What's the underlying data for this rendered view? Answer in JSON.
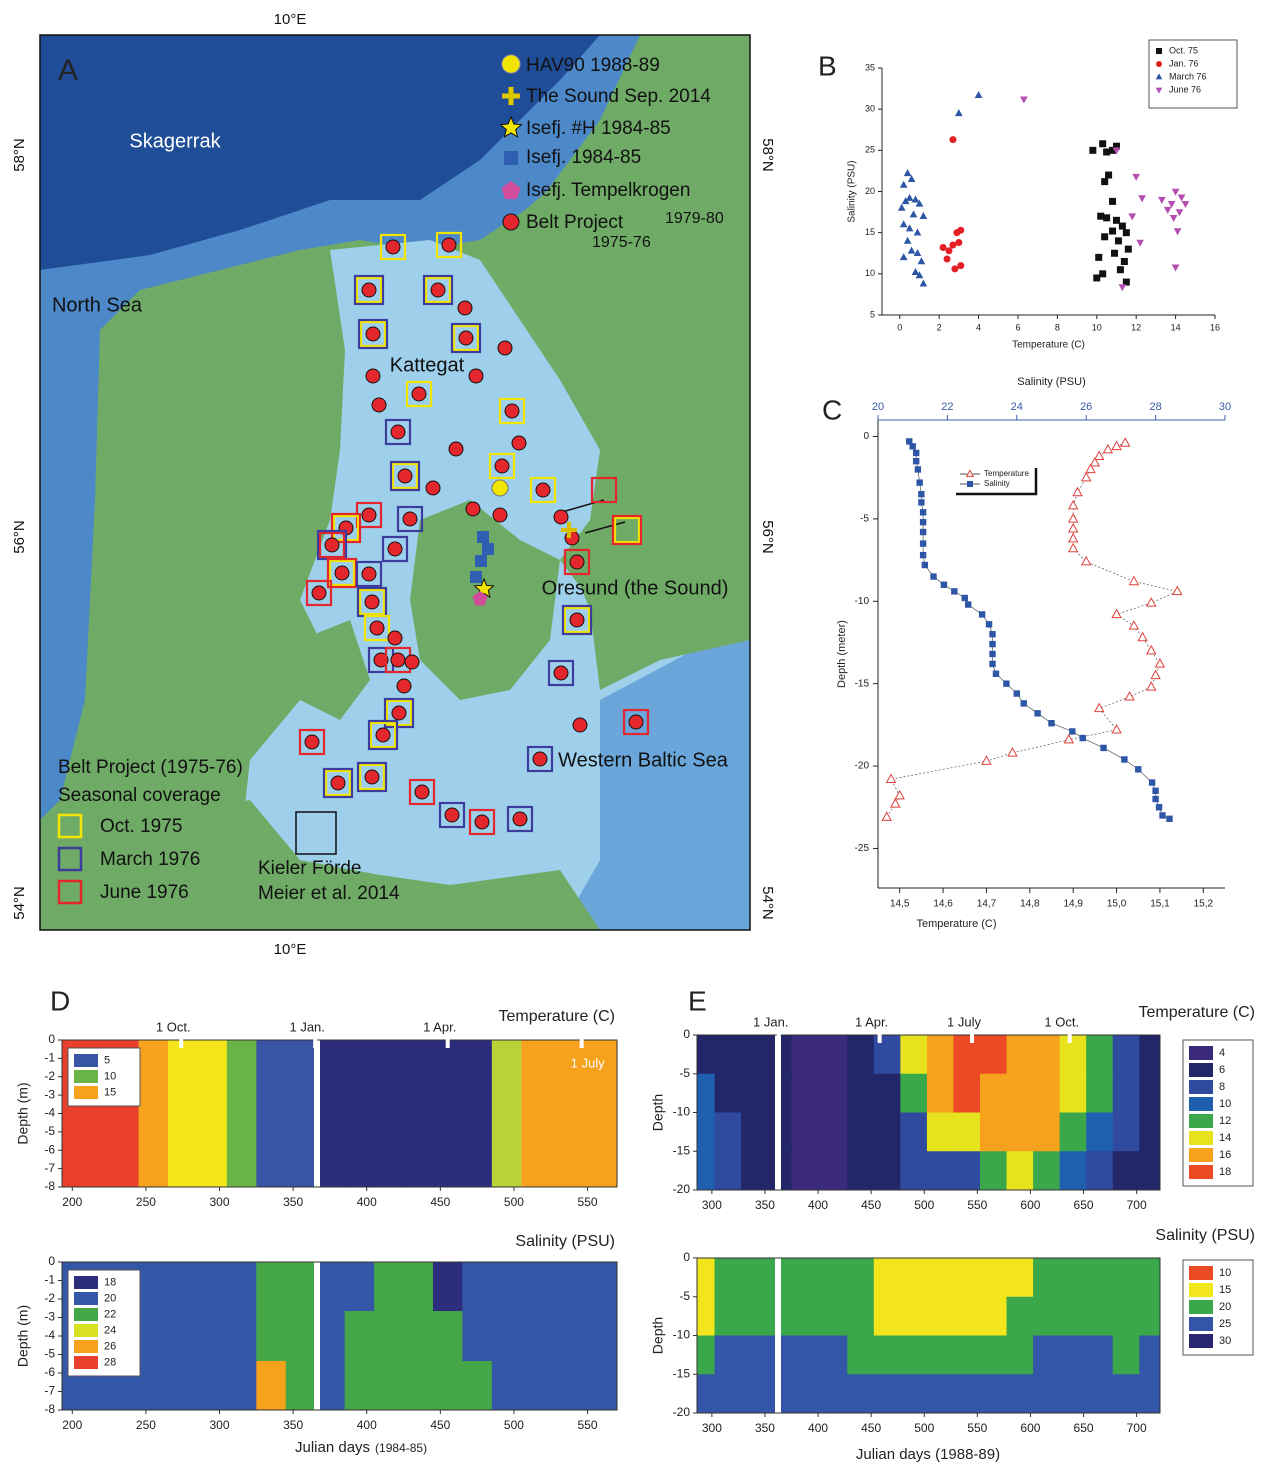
{
  "map": {
    "panel": "A",
    "lon_label": "10°E",
    "lat_labels": [
      "58°N",
      "56°N",
      "54°N"
    ],
    "places": [
      "Skagerrak",
      "North Sea",
      "Kattegat",
      "Oresund (the Sound)",
      "Western Baltic Sea"
    ],
    "legend": [
      "HAV90 1988-89",
      "The Sound Sep. 2014",
      "Isefj. #H 1984-85",
      "Isefj. 1984-85",
      "Isefj. Tempelkrogen",
      "Belt Project"
    ],
    "legend_notes": [
      "1979-80",
      "1975-76"
    ],
    "coverage_title": [
      "Belt Project (1975-76)",
      "Seasonal coverage"
    ],
    "coverage": [
      {
        "label": "Oct. 1975",
        "color": "#f2e600"
      },
      {
        "label": "March 1976",
        "color": "#3d3d9e"
      },
      {
        "label": "June 1976",
        "color": "#e4262d"
      }
    ],
    "inset": [
      "Kieler Förde",
      "Meier et al. 2014"
    ]
  },
  "chart_data": [
    {
      "type": "scatter",
      "panel": "B",
      "x_label": "Temperature (C)",
      "y_label": "Salinity (PSU)",
      "xlim": [
        -0.9,
        16
      ],
      "xticks": [
        0,
        2,
        4,
        6,
        8,
        10,
        12,
        14,
        16
      ],
      "ylim": [
        5,
        35
      ],
      "yticks": [
        5,
        10,
        15,
        20,
        25,
        30,
        35
      ],
      "legend": "upper right",
      "series": [
        {
          "name": "Oct. 75",
          "color": "#111111",
          "marker": "square",
          "x": [
            9.8,
            10.3,
            10.5,
            11.0,
            10.8,
            10.6,
            10.4,
            10.8,
            10.2,
            10.5,
            11.0,
            11.3,
            10.8,
            11.5,
            10.4,
            11.1,
            11.6,
            10.9,
            10.1,
            11.4,
            10.3,
            10.0,
            11.5,
            11.2
          ],
          "y": [
            25.0,
            25.8,
            24.8,
            25.5,
            25.0,
            22.0,
            21.2,
            18.8,
            17.0,
            16.8,
            16.5,
            15.8,
            15.2,
            15.0,
            14.5,
            14.0,
            13.0,
            12.5,
            12.0,
            11.5,
            10.0,
            9.5,
            9.0,
            10.5
          ]
        },
        {
          "name": "Jan. 76",
          "color": "#e31e24",
          "marker": "circle",
          "x": [
            2.7,
            2.2,
            2.5,
            2.4,
            3.0,
            2.9,
            3.1,
            2.7,
            2.8,
            3.1
          ],
          "y": [
            26.3,
            13.2,
            12.8,
            11.8,
            13.8,
            15.0,
            15.3,
            13.5,
            10.6,
            11.0
          ]
        },
        {
          "name": "March 76",
          "color": "#2e56a6",
          "marker": "triangle",
          "x": [
            0.2,
            0.4,
            0.6,
            0.1,
            0.3,
            0.5,
            0.8,
            1.0,
            0.7,
            1.2,
            0.2,
            0.5,
            0.9,
            0.4,
            0.6,
            0.2,
            0.9,
            1.1,
            0.8,
            1.0,
            1.2,
            3.0,
            4.0
          ],
          "y": [
            20.8,
            22.2,
            21.5,
            18.0,
            18.8,
            19.2,
            19.0,
            18.5,
            17.2,
            17.0,
            16.0,
            15.5,
            15.0,
            14.0,
            12.8,
            12.0,
            12.5,
            11.5,
            10.2,
            9.8,
            8.8,
            29.5,
            31.7
          ]
        },
        {
          "name": "June 76",
          "color": "#b44fb0",
          "marker": "triangle-down",
          "x": [
            6.3,
            11.0,
            12.0,
            12.3,
            11.8,
            12.2,
            11.3,
            13.3,
            13.8,
            14.0,
            14.3,
            13.6,
            14.2,
            14.5,
            13.9,
            14.1,
            14.0
          ],
          "y": [
            31.2,
            25.0,
            21.8,
            19.2,
            17.0,
            13.8,
            8.4,
            19.0,
            18.5,
            20.0,
            19.3,
            17.8,
            17.5,
            18.5,
            16.8,
            15.2,
            10.8
          ]
        }
      ]
    },
    {
      "type": "line",
      "panel": "C",
      "x_label": "Temperature (C)",
      "x2_label": "Salinity (PSU)",
      "y_label": "Depth (meter)",
      "xlim": [
        14.45,
        15.25
      ],
      "xticks": [
        {
          "value": 14.5,
          "label": "14,5"
        },
        {
          "value": 14.6,
          "label": "14,6"
        },
        {
          "value": 14.7,
          "label": "14,7"
        },
        {
          "value": 14.8,
          "label": "14,8"
        },
        {
          "value": 14.9,
          "label": "14,9"
        },
        {
          "value": 15.0,
          "label": "15,0"
        },
        {
          "value": 15.1,
          "label": "15,1"
        },
        {
          "value": 15.2,
          "label": "15,2"
        }
      ],
      "x2lim": [
        20,
        30
      ],
      "x2ticks": [
        20,
        22,
        24,
        26,
        28,
        30
      ],
      "x2_color": "#3a5aa6",
      "ylim": [
        -27.4,
        1
      ],
      "yticks": [
        0,
        -5,
        -10,
        -15,
        -20,
        -25
      ],
      "legend": "upper left",
      "series": [
        {
          "name": "Temperature",
          "color": "#e0403a",
          "marker": "triangle-open",
          "axis": "x",
          "x": [
            15.02,
            15.0,
            14.98,
            14.96,
            14.95,
            14.94,
            14.93,
            14.91,
            14.9,
            14.9,
            14.9,
            14.9,
            14.9,
            14.93,
            15.04,
            15.14,
            15.08,
            15.0,
            15.04,
            15.06,
            15.08,
            15.1,
            15.09,
            15.08,
            15.03,
            14.96,
            15.0,
            14.89,
            14.76,
            14.7,
            14.48,
            14.5,
            14.49,
            14.47
          ],
          "y": [
            -0.4,
            -0.6,
            -0.8,
            -1.2,
            -1.6,
            -2.0,
            -2.5,
            -3.4,
            -4.2,
            -5.0,
            -5.6,
            -6.2,
            -6.8,
            -7.6,
            -8.8,
            -9.4,
            -10.1,
            -10.8,
            -11.5,
            -12.2,
            -13.0,
            -13.8,
            -14.5,
            -15.2,
            -15.8,
            -16.5,
            -17.8,
            -18.4,
            -19.2,
            -19.7,
            -20.8,
            -21.8,
            -22.3,
            -23.1
          ]
        },
        {
          "name": "Salinity",
          "color": "#2e56a6",
          "marker": "square",
          "axis": "x2",
          "x": [
            20.9,
            21.0,
            21.1,
            21.1,
            21.15,
            21.2,
            21.25,
            21.25,
            21.3,
            21.3,
            21.3,
            21.3,
            21.3,
            21.35,
            21.6,
            21.9,
            22.2,
            22.5,
            22.6,
            23.0,
            23.2,
            23.3,
            23.3,
            23.3,
            23.3,
            23.4,
            23.7,
            24.0,
            24.2,
            24.6,
            25.0,
            25.6,
            25.9,
            26.5,
            27.1,
            27.5,
            27.9,
            28.0,
            28.0,
            28.1,
            28.2,
            28.4
          ],
          "y": [
            -0.3,
            -0.6,
            -1.0,
            -1.5,
            -2.0,
            -2.8,
            -3.5,
            -4.0,
            -4.6,
            -5.2,
            -5.8,
            -6.5,
            -7.2,
            -7.8,
            -8.5,
            -9.0,
            -9.4,
            -9.8,
            -10.2,
            -10.8,
            -11.4,
            -12.0,
            -12.6,
            -13.2,
            -13.8,
            -14.4,
            -15.0,
            -15.6,
            -16.2,
            -16.8,
            -17.4,
            -17.9,
            -18.3,
            -18.9,
            -19.6,
            -20.2,
            -21.0,
            -21.5,
            -22.0,
            -22.5,
            -23.0,
            -23.2
          ]
        }
      ]
    },
    {
      "type": "heatmap",
      "panel": "D",
      "title": "Temperature (C)",
      "y_label": "Depth (m)",
      "xlim": [
        193,
        570
      ],
      "xticks": [
        200,
        250,
        300,
        350,
        400,
        450,
        500,
        550
      ],
      "ylim": [
        -8,
        0
      ],
      "yticks": [
        0,
        -1,
        -2,
        -3,
        -4,
        -5,
        -6,
        -7,
        -8
      ],
      "date_marks": [
        {
          "value": 274,
          "label": "1 Oct."
        },
        {
          "value": 365,
          "label": "1 Jan."
        },
        {
          "value": 455,
          "label": "1 Apr."
        },
        {
          "value": 546,
          "label": "1 July"
        }
      ],
      "colorbar": [
        {
          "value": 5,
          "color": "#3a55a5"
        },
        {
          "value": 10,
          "color": "#6ab446"
        },
        {
          "value": 15,
          "color": "#f7a21d"
        }
      ],
      "colormap": [
        {
          "value": 0,
          "color": "#2c2d7c"
        },
        {
          "value": 5,
          "color": "#3a55a5"
        },
        {
          "value": 9,
          "color": "#6ab446"
        },
        {
          "value": 12,
          "color": "#b7d337"
        },
        {
          "value": 13,
          "color": "#f5e61c"
        },
        {
          "value": 16,
          "color": "#f7a21d"
        },
        {
          "value": 17.5,
          "color": "#e8402a"
        }
      ],
      "x": [
        195,
        215,
        235,
        255,
        275,
        295,
        315,
        335,
        355,
        375,
        395,
        415,
        435,
        455,
        475,
        495,
        515,
        535,
        555
      ],
      "depth": [
        -4
      ],
      "z": [
        [
          18,
          18,
          18,
          17,
          14,
          13,
          10,
          7,
          6,
          3,
          3,
          3,
          3,
          3,
          4,
          12,
          16,
          17,
          17
        ]
      ]
    },
    {
      "type": "heatmap",
      "title": "Salinity (PSU)",
      "y_label": "Depth (m)",
      "x_label": "Julian days",
      "x_label_note": "(1984-85)",
      "xlim": [
        193,
        570
      ],
      "xticks": [
        200,
        250,
        300,
        350,
        400,
        450,
        500,
        550
      ],
      "ylim": [
        -8,
        0
      ],
      "yticks": [
        0,
        -1,
        -2,
        -3,
        -4,
        -5,
        -6,
        -7,
        -8
      ],
      "colorbar": [
        {
          "value": 18,
          "color": "#2c2d7c"
        },
        {
          "value": 20,
          "color": "#3456a8"
        },
        {
          "value": 22,
          "color": "#45a647"
        },
        {
          "value": 24,
          "color": "#d8e020"
        },
        {
          "value": 26,
          "color": "#f7a21d"
        },
        {
          "value": 28,
          "color": "#e8402a"
        }
      ],
      "x": [
        195,
        215,
        235,
        255,
        275,
        295,
        315,
        335,
        355,
        375,
        395,
        415,
        435,
        455,
        475,
        495,
        515,
        535,
        555
      ],
      "depth": [
        -1.3,
        -4,
        -6.7
      ],
      "z": [
        [
          20,
          20,
          20,
          20,
          20,
          20,
          20,
          22,
          22,
          20,
          21,
          22,
          22,
          19,
          20,
          20,
          20,
          20,
          20
        ],
        [
          20,
          20,
          20,
          20,
          20,
          20,
          21,
          22,
          22,
          20,
          22,
          22,
          22,
          22,
          21,
          20,
          20,
          20,
          20
        ],
        [
          20,
          20,
          20,
          20,
          20,
          20,
          21,
          26,
          22,
          20,
          22,
          23,
          23,
          23,
          22,
          20,
          20,
          20,
          20
        ]
      ]
    },
    {
      "type": "heatmap",
      "panel": "E",
      "title": "Temperature (C)",
      "y_label": "Depth",
      "xlim": [
        286,
        722
      ],
      "xticks": [
        300,
        350,
        400,
        450,
        500,
        550,
        600,
        650,
        700
      ],
      "ylim": [
        -20,
        0
      ],
      "yticks": [
        0,
        -5,
        -10,
        -15,
        -20
      ],
      "date_marks": [
        {
          "value": 363,
          "label": "1 Jan."
        },
        {
          "value": 458,
          "label": "1 Apr."
        },
        {
          "value": 545,
          "label": "1 July"
        },
        {
          "value": 637,
          "label": "1 Oct."
        }
      ],
      "colorbar": [
        {
          "value": 4,
          "color": "#3b2a7c"
        },
        {
          "value": 6,
          "color": "#23276a"
        },
        {
          "value": 8,
          "color": "#2f4a9e"
        },
        {
          "value": 10,
          "color": "#1f5fb0"
        },
        {
          "value": 12,
          "color": "#3aa74a"
        },
        {
          "value": 14,
          "color": "#e6e31e"
        },
        {
          "value": 16,
          "color": "#f7a21d"
        },
        {
          "value": 18,
          "color": "#ec4a25"
        }
      ],
      "x": [
        290,
        315,
        340,
        360,
        390,
        415,
        440,
        465,
        490,
        515,
        540,
        565,
        590,
        615,
        640,
        665,
        690,
        715
      ],
      "depth": [
        -2.5,
        -7.5,
        -12.5,
        -17.5
      ],
      "z": [
        [
          7,
          6,
          6,
          6,
          5,
          5,
          6,
          8,
          14,
          16,
          18,
          18,
          17,
          16,
          15,
          12,
          8,
          6
        ],
        [
          10,
          7,
          6,
          6,
          5,
          5,
          6,
          7,
          12,
          16,
          18,
          17,
          17,
          16,
          14,
          12,
          8,
          6
        ],
        [
          10,
          8,
          6,
          6,
          5,
          5,
          6,
          7,
          8,
          14,
          15,
          16,
          17,
          16,
          13,
          10,
          8,
          6
        ],
        [
          11,
          8,
          6,
          6,
          5,
          5,
          6,
          7,
          8,
          8,
          9,
          12,
          15,
          12,
          10,
          8,
          7,
          6
        ]
      ]
    },
    {
      "type": "heatmap",
      "title": "Salinity (PSU)",
      "y_label": "Depth",
      "x_label": "Julian days (1988-89)",
      "xlim": [
        286,
        722
      ],
      "xticks": [
        300,
        350,
        400,
        450,
        500,
        550,
        600,
        650,
        700
      ],
      "ylim": [
        -20,
        0
      ],
      "yticks": [
        0,
        -5,
        -10,
        -15,
        -20
      ],
      "colorbar": [
        {
          "value": 10,
          "color": "#ec4a25"
        },
        {
          "value": 15,
          "color": "#f3e51c"
        },
        {
          "value": 20,
          "color": "#3aa74a"
        },
        {
          "value": 25,
          "color": "#3456a8"
        },
        {
          "value": 30,
          "color": "#2a2770"
        }
      ],
      "x": [
        290,
        315,
        340,
        360,
        390,
        415,
        440,
        465,
        490,
        515,
        540,
        565,
        590,
        615,
        640,
        665,
        690,
        715
      ],
      "depth": [
        -2.5,
        -7.5,
        -12.5,
        -17.5
      ],
      "z": [
        [
          17,
          22,
          24,
          24,
          24,
          24,
          22,
          18,
          16,
          15,
          15,
          16,
          18,
          20,
          22,
          24,
          22,
          24
        ],
        [
          18,
          22,
          24,
          24,
          24,
          24,
          22,
          19,
          16,
          15,
          16,
          18,
          20,
          20,
          22,
          24,
          23,
          24
        ],
        [
          24,
          25,
          25,
          25,
          25,
          25,
          24,
          22,
          22,
          22,
          22,
          22,
          24,
          25,
          25,
          25,
          24,
          25
        ],
        [
          27,
          28,
          28,
          28,
          28,
          28,
          27,
          28,
          29,
          29,
          28,
          28,
          28,
          28,
          28,
          28,
          28,
          28
        ]
      ]
    }
  ]
}
